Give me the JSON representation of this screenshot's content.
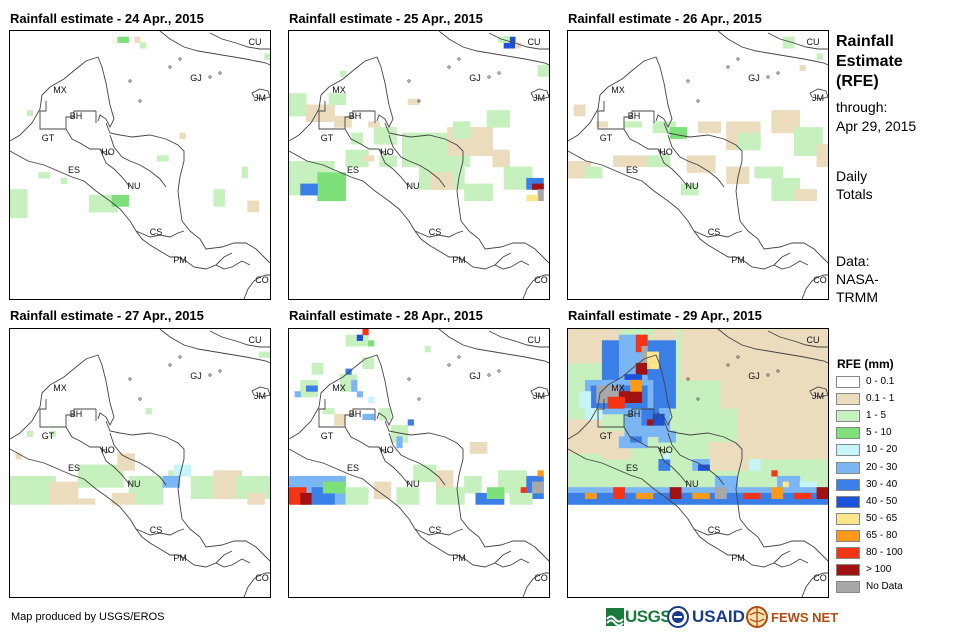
{
  "panels": [
    {
      "title": "Rainfall estimate - 24 Apr., 2015",
      "rain": [
        [
          0,
          28,
          3,
          5,
          "c2"
        ],
        [
          14,
          29,
          5,
          3,
          "c2"
        ],
        [
          18,
          29,
          3,
          2,
          "c3"
        ],
        [
          36,
          28,
          2,
          3,
          "c2"
        ],
        [
          42,
          30,
          2,
          2,
          "c1"
        ],
        [
          19,
          1,
          2,
          1,
          "c3"
        ],
        [
          23,
          2,
          1,
          1,
          "c2"
        ],
        [
          22,
          1,
          1,
          1,
          "c1"
        ],
        [
          5,
          25,
          2,
          1,
          "c2"
        ],
        [
          9,
          26,
          1,
          1,
          "c2"
        ],
        [
          26,
          22,
          2,
          1,
          "c2"
        ],
        [
          41,
          24,
          1,
          2,
          "c2"
        ],
        [
          30,
          18,
          1,
          1,
          "c1"
        ],
        [
          3,
          14,
          1,
          1,
          "c2"
        ],
        [
          45,
          4,
          1,
          1,
          "c2"
        ]
      ]
    },
    {
      "title": "Rainfall estimate - 25 Apr., 2015",
      "rain": [
        [
          0,
          11,
          3,
          4,
          "c2"
        ],
        [
          3,
          13,
          5,
          3,
          "c1"
        ],
        [
          7,
          11,
          3,
          2,
          "c2"
        ],
        [
          11,
          18,
          2,
          2,
          "c2"
        ],
        [
          8,
          15,
          3,
          2,
          "c1"
        ],
        [
          20,
          18,
          12,
          6,
          "c2"
        ],
        [
          23,
          20,
          8,
          8,
          "c2"
        ],
        [
          28,
          17,
          8,
          5,
          "c1"
        ],
        [
          15,
          17,
          4,
          3,
          "c2"
        ],
        [
          35,
          14,
          4,
          3,
          "c2"
        ],
        [
          29,
          16,
          3,
          3,
          "c2"
        ],
        [
          36,
          21,
          3,
          3,
          "c1"
        ],
        [
          38,
          24,
          5,
          4,
          "c2"
        ],
        [
          42,
          26,
          3,
          2,
          "c6"
        ],
        [
          43,
          27,
          2,
          1,
          "c11"
        ],
        [
          44,
          28,
          1,
          2,
          "c12"
        ],
        [
          42,
          29,
          2,
          1,
          "c8"
        ],
        [
          0,
          23,
          8,
          6,
          "c2"
        ],
        [
          5,
          25,
          5,
          5,
          "c3"
        ],
        [
          2,
          27,
          3,
          2,
          "c6"
        ],
        [
          10,
          21,
          4,
          3,
          "c2"
        ],
        [
          13,
          22,
          2,
          1,
          "c1"
        ],
        [
          25,
          25,
          4,
          3,
          "c1"
        ],
        [
          16,
          22,
          3,
          2,
          "c2"
        ],
        [
          31,
          27,
          5,
          3,
          "c2"
        ],
        [
          38,
          1,
          2,
          2,
          "c7"
        ],
        [
          37,
          1,
          2,
          1,
          "c2"
        ],
        [
          40,
          2,
          1,
          1,
          "c1"
        ],
        [
          44,
          6,
          2,
          2,
          "c2"
        ],
        [
          9,
          7,
          1,
          1,
          "c2"
        ],
        [
          14,
          16,
          2,
          1,
          "c1"
        ],
        [
          21,
          12,
          2,
          1,
          "c1"
        ]
      ]
    },
    {
      "title": "Rainfall estimate - 26 Apr., 2015",
      "rain": [
        [
          38,
          1,
          2,
          2,
          "c2"
        ],
        [
          41,
          6,
          1,
          1,
          "c1"
        ],
        [
          44,
          4,
          1,
          1,
          "c2"
        ],
        [
          1,
          13,
          2,
          2,
          "c1"
        ],
        [
          5,
          16,
          2,
          1,
          "c1"
        ],
        [
          10,
          16,
          3,
          1,
          "c2"
        ],
        [
          15,
          16,
          4,
          2,
          "c2"
        ],
        [
          18,
          17,
          3,
          2,
          "c3"
        ],
        [
          23,
          16,
          4,
          2,
          "c1"
        ],
        [
          28,
          16,
          6,
          5,
          "c1"
        ],
        [
          30,
          18,
          4,
          3,
          "c2"
        ],
        [
          36,
          14,
          5,
          4,
          "c1"
        ],
        [
          40,
          17,
          5,
          5,
          "c2"
        ],
        [
          44,
          20,
          2,
          4,
          "c1"
        ],
        [
          33,
          24,
          5,
          2,
          "c2"
        ],
        [
          0,
          23,
          4,
          3,
          "c1"
        ],
        [
          3,
          24,
          3,
          2,
          "c2"
        ],
        [
          8,
          22,
          6,
          2,
          "c1"
        ],
        [
          14,
          22,
          4,
          2,
          "c2"
        ],
        [
          21,
          22,
          5,
          3,
          "c1"
        ],
        [
          28,
          24,
          4,
          3,
          "c1"
        ],
        [
          36,
          26,
          5,
          4,
          "c2"
        ],
        [
          40,
          28,
          4,
          2,
          "c1"
        ],
        [
          20,
          27,
          3,
          2,
          "c2"
        ]
      ]
    },
    {
      "title": "Rainfall estimate - 27 Apr., 2015",
      "rain": [
        [
          3,
          18,
          1,
          1,
          "c2"
        ],
        [
          7,
          18,
          1,
          1,
          "c2"
        ],
        [
          1,
          22,
          1,
          1,
          "c1"
        ],
        [
          44,
          4,
          2,
          1,
          "c2"
        ],
        [
          0,
          26,
          8,
          5,
          "c2"
        ],
        [
          7,
          27,
          5,
          4,
          "c1"
        ],
        [
          12,
          24,
          8,
          4,
          "c2"
        ],
        [
          19,
          22,
          3,
          3,
          "c1"
        ],
        [
          21,
          26,
          6,
          5,
          "c2"
        ],
        [
          28,
          25,
          2,
          2,
          "c2"
        ],
        [
          29,
          24,
          3,
          2,
          "c4"
        ],
        [
          27,
          26,
          3,
          2,
          "c5"
        ],
        [
          32,
          26,
          4,
          4,
          "c2"
        ],
        [
          36,
          25,
          5,
          5,
          "c1"
        ],
        [
          40,
          26,
          6,
          4,
          "c2"
        ],
        [
          42,
          29,
          3,
          2,
          "c1"
        ],
        [
          18,
          29,
          4,
          2,
          "c1"
        ],
        [
          12,
          30,
          3,
          1,
          "c1"
        ],
        [
          24,
          14,
          1,
          1,
          "c2"
        ]
      ]
    },
    {
      "title": "Rainfall estimate - 28 Apr., 2015",
      "rain": [
        [
          10,
          1,
          4,
          2,
          "c2"
        ],
        [
          12,
          1,
          1,
          1,
          "c7"
        ],
        [
          14,
          2,
          1,
          1,
          "c3"
        ],
        [
          13,
          0,
          1,
          1,
          "c10"
        ],
        [
          4,
          6,
          2,
          2,
          "c2"
        ],
        [
          2,
          9,
          3,
          3,
          "c2"
        ],
        [
          3,
          10,
          2,
          1,
          "c6"
        ],
        [
          1,
          11,
          1,
          1,
          "c5"
        ],
        [
          9,
          8,
          3,
          3,
          "c2"
        ],
        [
          11,
          9,
          1,
          2,
          "c5"
        ],
        [
          10,
          7,
          1,
          1,
          "c6"
        ],
        [
          13,
          5,
          2,
          2,
          "c2"
        ],
        [
          12,
          11,
          1,
          1,
          "c5"
        ],
        [
          14,
          12,
          1,
          1,
          "c4"
        ],
        [
          16,
          14,
          2,
          2,
          "c2"
        ],
        [
          13,
          15,
          2,
          1,
          "c5"
        ],
        [
          6,
          14,
          2,
          1,
          "c2"
        ],
        [
          8,
          15,
          2,
          2,
          "c1"
        ],
        [
          18,
          17,
          3,
          3,
          "c2"
        ],
        [
          21,
          16,
          1,
          1,
          "c6"
        ],
        [
          19,
          19,
          1,
          2,
          "c5"
        ],
        [
          22,
          24,
          4,
          3,
          "c2"
        ],
        [
          26,
          25,
          3,
          4,
          "c1"
        ],
        [
          32,
          20,
          3,
          2,
          "c1"
        ],
        [
          31,
          26,
          3,
          3,
          "c2"
        ],
        [
          37,
          25,
          5,
          4,
          "c2"
        ],
        [
          42,
          26,
          3,
          4,
          "c6"
        ],
        [
          43,
          27,
          2,
          2,
          "c12"
        ],
        [
          44,
          25,
          1,
          1,
          "c9"
        ],
        [
          41,
          28,
          1,
          1,
          "c10"
        ],
        [
          0,
          26,
          10,
          5,
          "c5"
        ],
        [
          0,
          28,
          3,
          3,
          "c10"
        ],
        [
          2,
          29,
          2,
          2,
          "c11"
        ],
        [
          4,
          28,
          4,
          3,
          "c6"
        ],
        [
          6,
          27,
          4,
          2,
          "c3"
        ],
        [
          10,
          28,
          4,
          3,
          "c2"
        ],
        [
          15,
          27,
          3,
          3,
          "c1"
        ],
        [
          19,
          28,
          4,
          3,
          "c2"
        ],
        [
          26,
          28,
          5,
          3,
          "c2"
        ],
        [
          33,
          29,
          5,
          2,
          "c6"
        ],
        [
          35,
          28,
          3,
          2,
          "c3"
        ],
        [
          39,
          29,
          4,
          2,
          "c2"
        ],
        [
          24,
          3,
          1,
          1,
          "c2"
        ]
      ]
    },
    {
      "title": "Rainfall estimate - 29 Apr., 2015",
      "rain": [
        [
          0,
          0,
          46,
          31,
          "c2"
        ],
        [
          0,
          0,
          9,
          6,
          "c1"
        ],
        [
          15,
          0,
          4,
          3,
          "c1"
        ],
        [
          20,
          0,
          26,
          9,
          "c1"
        ],
        [
          27,
          8,
          19,
          6,
          "c1"
        ],
        [
          30,
          13,
          16,
          10,
          "c1"
        ],
        [
          25,
          20,
          8,
          5,
          "c1"
        ],
        [
          0,
          16,
          6,
          6,
          "c1"
        ],
        [
          6,
          18,
          5,
          5,
          "c1"
        ],
        [
          6,
          2,
          13,
          12,
          "c6"
        ],
        [
          9,
          1,
          5,
          10,
          "c5"
        ],
        [
          12,
          1,
          2,
          3,
          "c10"
        ],
        [
          13,
          3,
          1,
          4,
          "c12"
        ],
        [
          12,
          6,
          2,
          2,
          "c11"
        ],
        [
          14,
          4,
          2,
          3,
          "c8"
        ],
        [
          10,
          8,
          3,
          2,
          "c7"
        ],
        [
          3,
          9,
          12,
          6,
          "c5"
        ],
        [
          4,
          10,
          10,
          4,
          "c6"
        ],
        [
          5,
          10,
          4,
          3,
          "c12"
        ],
        [
          9,
          11,
          4,
          2,
          "c11"
        ],
        [
          7,
          12,
          3,
          2,
          "c10"
        ],
        [
          2,
          11,
          2,
          3,
          "c4"
        ],
        [
          11,
          9,
          2,
          2,
          "c9"
        ],
        [
          3,
          14,
          3,
          2,
          "c4"
        ],
        [
          10,
          14,
          8,
          5,
          "c5"
        ],
        [
          13,
          14,
          3,
          3,
          "c6"
        ],
        [
          15,
          15,
          2,
          2,
          "c7"
        ],
        [
          14,
          16,
          1,
          1,
          "c11"
        ],
        [
          16,
          18,
          3,
          2,
          "c5"
        ],
        [
          9,
          19,
          5,
          2,
          "c5"
        ],
        [
          11,
          19,
          2,
          1,
          "c6"
        ],
        [
          16,
          23,
          2,
          2,
          "c6"
        ],
        [
          17,
          22,
          1,
          1,
          "c4"
        ],
        [
          22,
          23,
          3,
          2,
          "c5"
        ],
        [
          23,
          24,
          2,
          1,
          "c7"
        ],
        [
          26,
          26,
          4,
          2,
          "c5"
        ],
        [
          32,
          23,
          2,
          2,
          "c4"
        ],
        [
          37,
          26,
          4,
          3,
          "c5"
        ],
        [
          38,
          27,
          1,
          1,
          "c8"
        ],
        [
          41,
          27,
          3,
          2,
          "c4"
        ],
        [
          36,
          25,
          1,
          1,
          "c10"
        ],
        [
          0,
          28,
          46,
          3,
          "c5"
        ],
        [
          0,
          29,
          46,
          2,
          "c6"
        ],
        [
          3,
          29,
          2,
          1,
          "c9"
        ],
        [
          8,
          28,
          2,
          2,
          "c10"
        ],
        [
          12,
          29,
          3,
          1,
          "c9"
        ],
        [
          18,
          28,
          2,
          2,
          "c11"
        ],
        [
          22,
          29,
          3,
          1,
          "c9"
        ],
        [
          26,
          28,
          2,
          2,
          "c12"
        ],
        [
          31,
          29,
          3,
          1,
          "c10"
        ],
        [
          36,
          28,
          2,
          2,
          "c9"
        ],
        [
          40,
          29,
          3,
          1,
          "c10"
        ],
        [
          44,
          28,
          2,
          2,
          "c11"
        ]
      ]
    }
  ],
  "country_labels": [
    "CU",
    "MX",
    "GJ",
    "JM",
    "BH",
    "GT",
    "HO",
    "ES",
    "NU",
    "CS",
    "PM",
    "CO"
  ],
  "sidebar": {
    "title_lines": [
      "Rainfall",
      "Estimate",
      "(RFE)"
    ],
    "through": "through:",
    "through_date": "Apr 29, 2015",
    "daily_1": "Daily",
    "daily_2": "Totals",
    "data_1": "Data:",
    "data_2": "NASA-",
    "data_3": "TRMM"
  },
  "legend": {
    "title": "RFE (mm)",
    "items": [
      {
        "label": "0 - 0.1",
        "color": "#ffffff"
      },
      {
        "label": "0.1 - 1",
        "color": "#eadcbd"
      },
      {
        "label": "1 - 5",
        "color": "#c6f0be"
      },
      {
        "label": "5 - 10",
        "color": "#7ee07a"
      },
      {
        "label": "10 - 20",
        "color": "#c6f4f9"
      },
      {
        "label": "20 - 30",
        "color": "#7ab6f4"
      },
      {
        "label": "30 - 40",
        "color": "#3a7ee8"
      },
      {
        "label": "40 - 50",
        "color": "#1c52d8"
      },
      {
        "label": "50 - 65",
        "color": "#fde68a"
      },
      {
        "label": "65 - 80",
        "color": "#fb9a1a"
      },
      {
        "label": "80 - 100",
        "color": "#f53416"
      },
      {
        "label": "> 100",
        "color": "#a31212"
      },
      {
        "label": "No Data",
        "color": "#a8a8a8"
      }
    ]
  },
  "footer": {
    "credit": "Map produced by USGS/EROS",
    "logo_usgs": "USGS",
    "logo_usaid": "USAID",
    "logo_fews": "FEWS NET"
  }
}
